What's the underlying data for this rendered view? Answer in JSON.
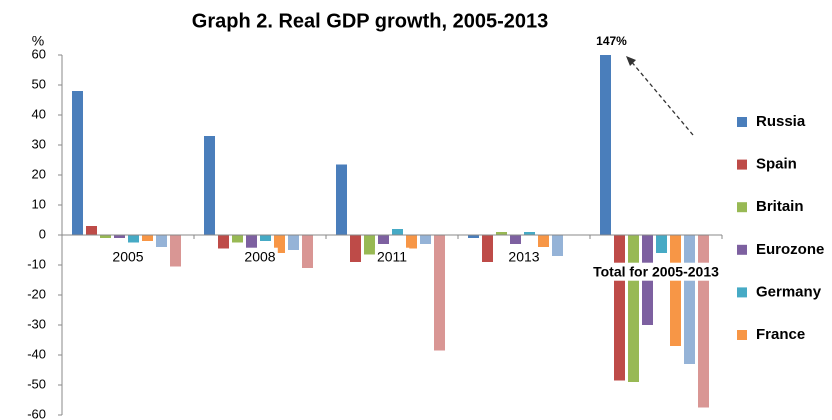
{
  "chart_data": {
    "type": "bar",
    "title": "Graph 2. Real GDP growth, 2005-2013",
    "y_label": "%",
    "categories": [
      "2005",
      "2008",
      "2011",
      "2013",
      "Total for 2005-2013"
    ],
    "series": [
      {
        "name": "Russia",
        "color": "#4a7ebb",
        "values": [
          48,
          33,
          23.5,
          -1,
          147
        ],
        "value_labels": [
          null,
          null,
          null,
          null,
          "147%"
        ]
      },
      {
        "name": "Spain",
        "color": "#be4b48",
        "values": [
          3,
          -4.5,
          -9,
          -9,
          -48.5
        ]
      },
      {
        "name": "Britain",
        "color": "#98b954",
        "values": [
          -1,
          -2.5,
          -6.5,
          1,
          -49
        ]
      },
      {
        "name": "Eurozone",
        "color": "#7d60a0",
        "values": [
          -1,
          -5,
          -3,
          -3,
          -30
        ]
      },
      {
        "name": "Germany",
        "color": "#46aac5",
        "values": [
          -2.5,
          -2,
          2,
          1,
          -6
        ]
      },
      {
        "name": "France",
        "color": "#f79646",
        "values": [
          -2,
          -6,
          -4.5,
          -4,
          -37
        ]
      },
      {
        "color": "#95b3d7",
        "values": [
          -4,
          -5,
          -3,
          -7,
          -43
        ]
      },
      {
        "color": "#d99694",
        "values": [
          -10.5,
          -11,
          -38.5,
          null,
          -57.5
        ]
      }
    ],
    "ylim": [
      -60,
      60
    ],
    "yticks": [
      -60,
      -50,
      -40,
      -30,
      -20,
      -10,
      0,
      10,
      20,
      30,
      40,
      50,
      60
    ]
  }
}
